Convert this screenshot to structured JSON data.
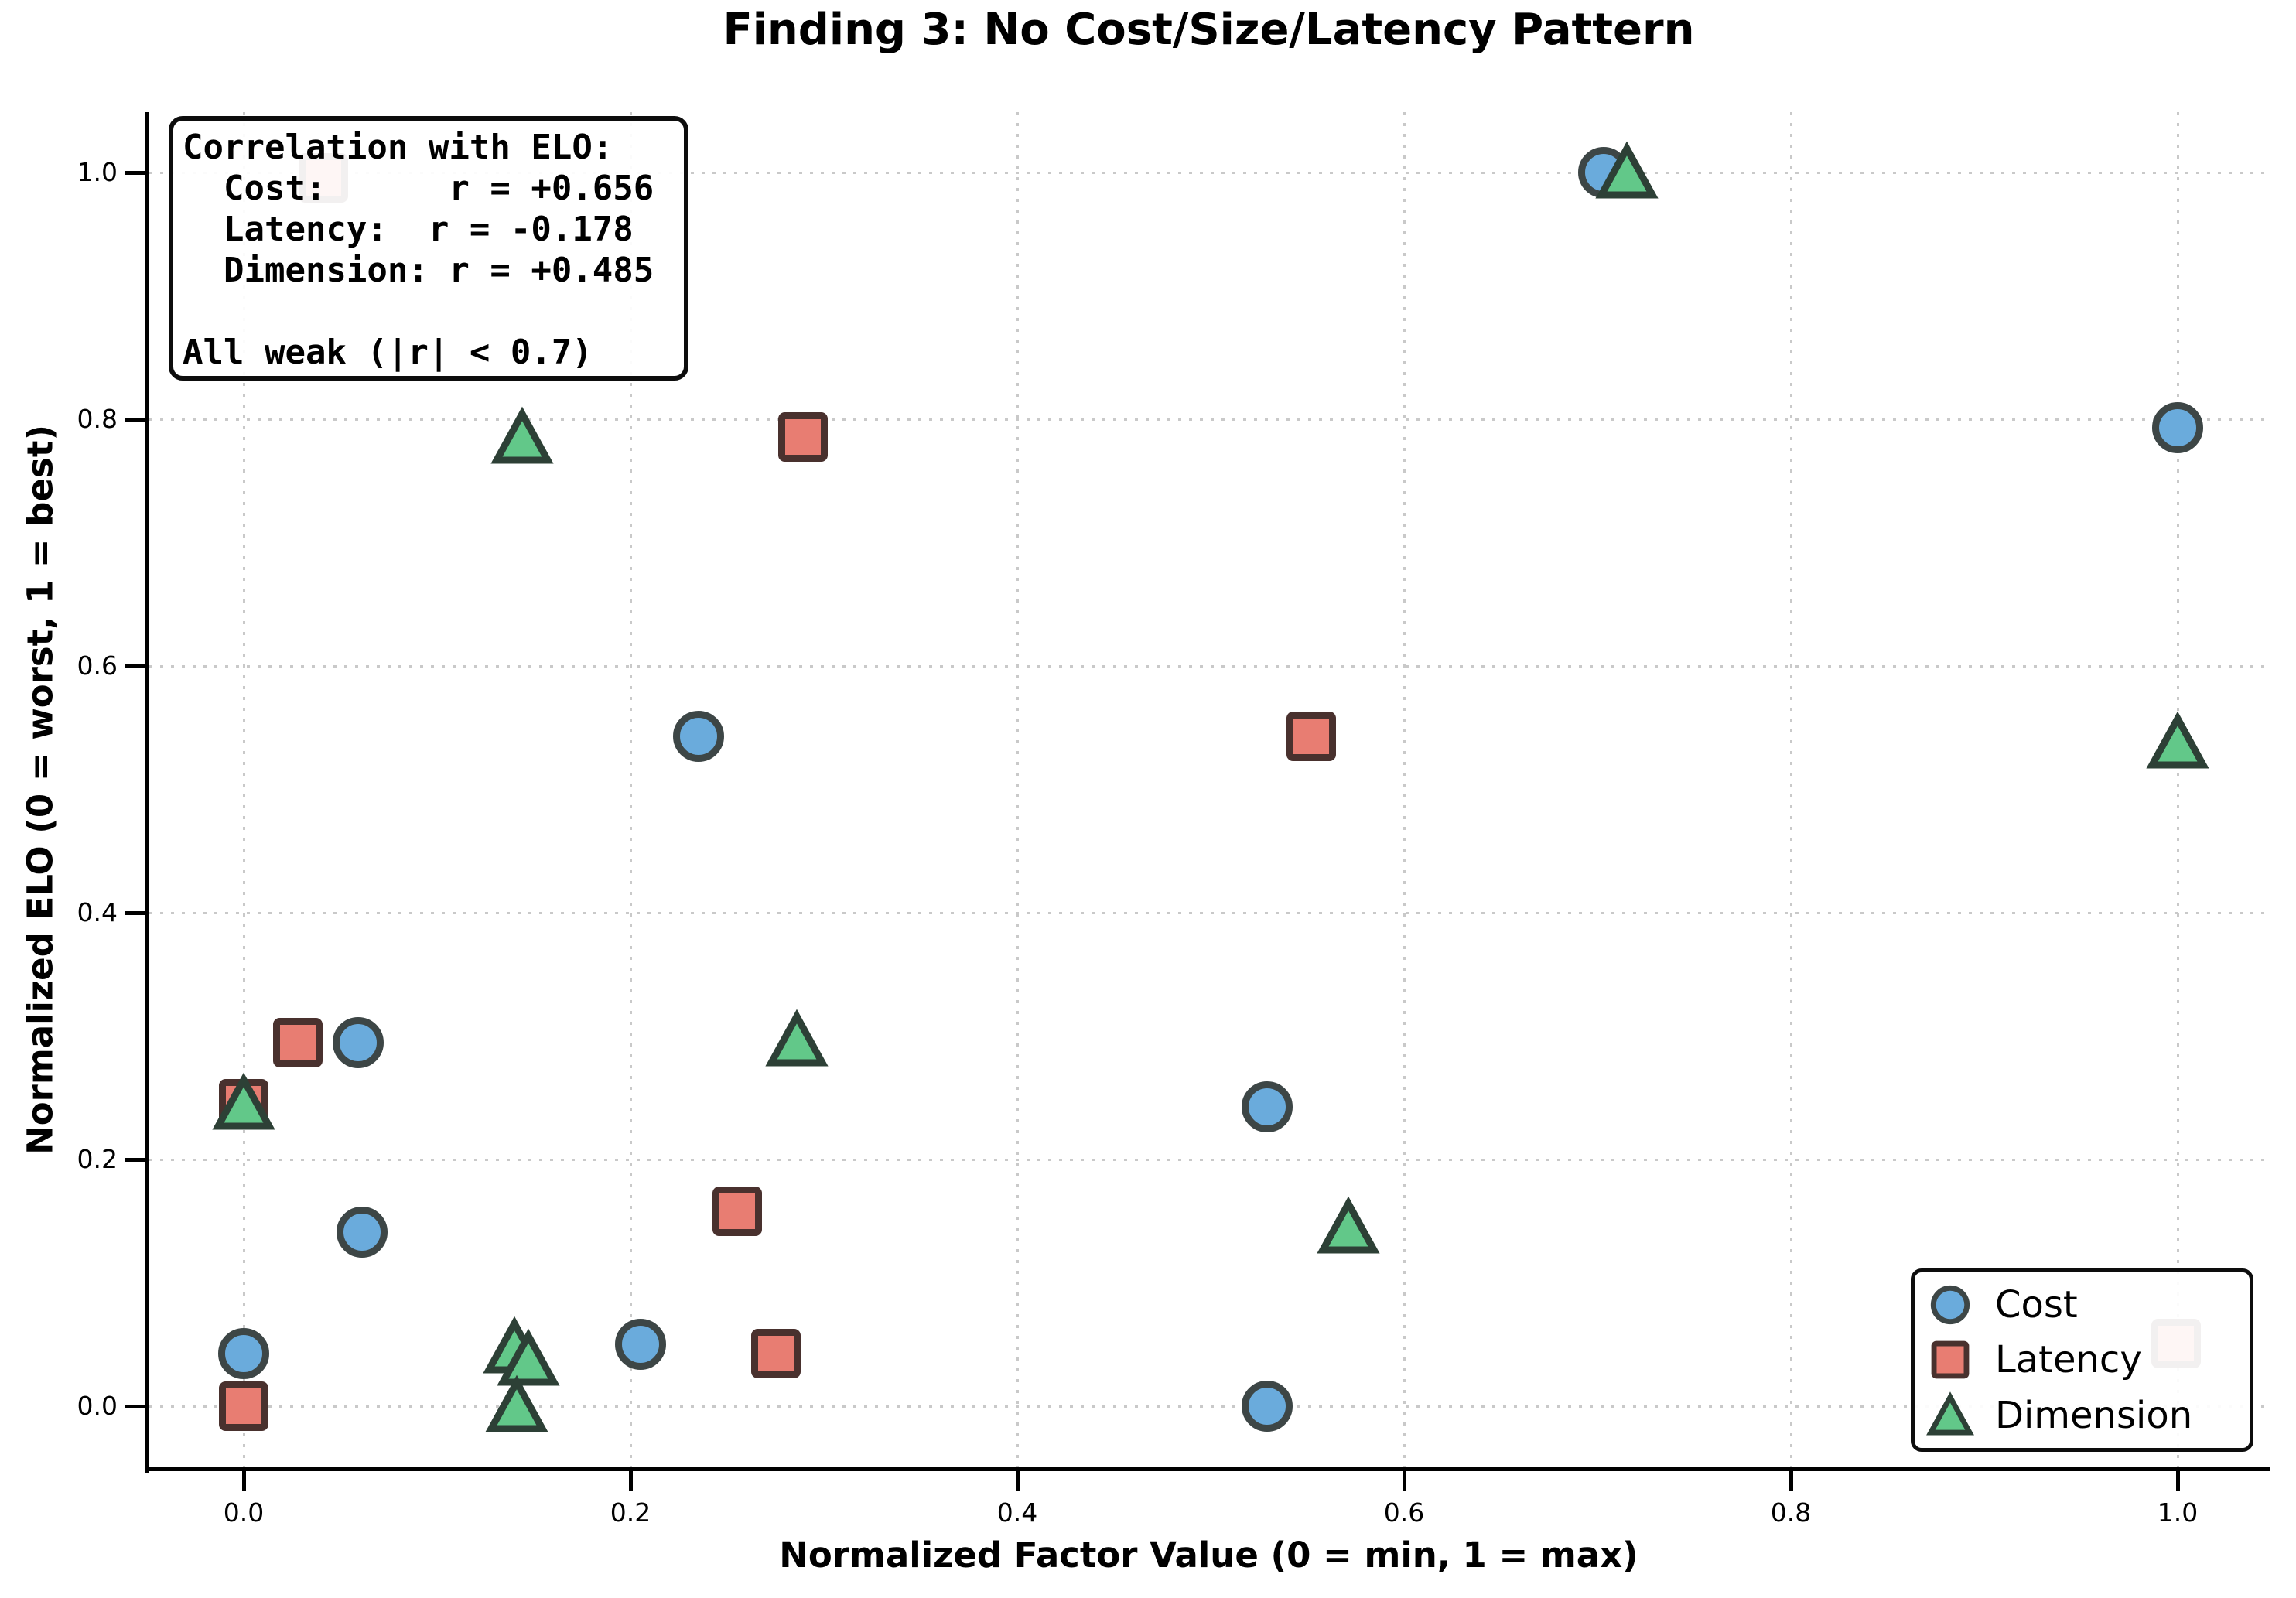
{
  "title": "Finding 3: No Cost/Size/Latency Pattern",
  "axes": {
    "xlabel": "Normalized Factor Value (0 = min, 1 = max)",
    "ylabel": "Normalized ELO (0 = worst, 1 = best)"
  },
  "annotation": {
    "text": "Correlation with ELO:\n  Cost:      r = +0.656\n  Latency:  r = -0.178\n  Dimension: r = +0.485\n\nAll weak (|r| < 0.7)",
    "values": {
      "cost_r": "+0.656",
      "latency_r": "-0.178",
      "dimension_r": "+0.485",
      "note": "All weak (|r| < 0.7)"
    }
  },
  "colors": {
    "background": "#ffffff",
    "grid": "#c9c9c9",
    "spine": "#000000",
    "cost_fill": "#6aabdc",
    "latency_fill": "#e87d72",
    "dimension_fill": "#62c889"
  },
  "chart_data": {
    "type": "scatter",
    "title": "Finding 3: No Cost/Size/Latency Pattern",
    "xlabel": "Normalized Factor Value (0 = min, 1 = max)",
    "ylabel": "Normalized ELO (0 = worst, 1 = best)",
    "xlim": [
      -0.05,
      1.048
    ],
    "ylim": [
      -0.05,
      1.049
    ],
    "xticks": [
      0.0,
      0.2,
      0.4,
      0.6,
      0.8,
      1.0
    ],
    "yticks": [
      0.0,
      0.2,
      0.4,
      0.6,
      0.8,
      1.0
    ],
    "grid": true,
    "grid_style": "dotted",
    "legend_position": "lower right",
    "series": [
      {
        "name": "Cost",
        "marker": "circle",
        "color": "#6aabdc",
        "edge": "#3d4646",
        "points": [
          [
            0.703,
            1.0
          ],
          [
            1.0,
            0.793
          ],
          [
            0.235,
            0.543
          ],
          [
            0.059,
            0.295
          ],
          [
            0.529,
            0.243
          ],
          [
            0.061,
            0.141
          ],
          [
            0.205,
            0.05
          ],
          [
            0.0,
            0.043
          ],
          [
            0.529,
            0.0
          ]
        ]
      },
      {
        "name": "Latency",
        "marker": "square",
        "color": "#e87d72",
        "edge": "#49312e",
        "points": [
          [
            0.041,
            0.996
          ],
          [
            0.289,
            0.786
          ],
          [
            0.552,
            0.543
          ],
          [
            0.028,
            0.295
          ],
          [
            0.0,
            0.245
          ],
          [
            0.255,
            0.158
          ],
          [
            0.999,
            0.051
          ],
          [
            0.275,
            0.043
          ],
          [
            0.0,
            0.0
          ]
        ]
      },
      {
        "name": "Dimension",
        "marker": "triangle",
        "color": "#62c889",
        "edge": "#2d4036",
        "points": [
          [
            0.715,
            1.0
          ],
          [
            0.144,
            0.785
          ],
          [
            1.0,
            0.538
          ],
          [
            0.286,
            0.297
          ],
          [
            0.0,
            0.245
          ],
          [
            0.571,
            0.145
          ],
          [
            0.14,
            0.048
          ],
          [
            0.147,
            0.038
          ],
          [
            0.141,
            0.0
          ]
        ]
      }
    ]
  }
}
